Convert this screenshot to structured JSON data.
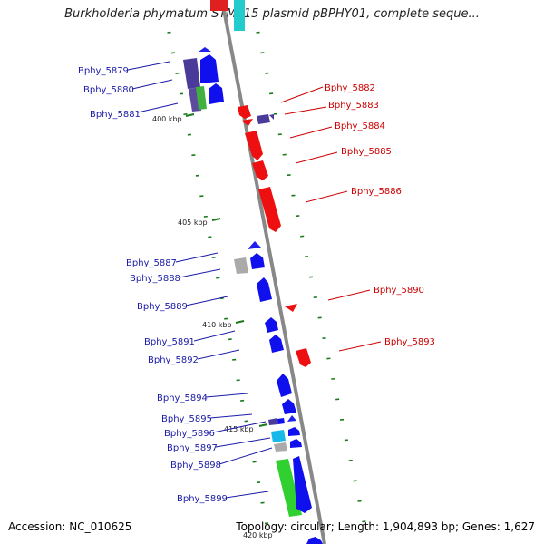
{
  "title": "Burkholderia phymatum STM815 plasmid pBPHY01, complete seque...",
  "accession_label": "Accession: NC_010625",
  "summary_label": "Topology: circular; Length: 1,904,893 bp; Genes: 1,627",
  "colors": {
    "forward_strand": "#0000ee",
    "reverse_strand": "#ee0000",
    "forward_label": "#1a1aa8",
    "reverse_label": "#cc0000",
    "backbone": "#888888",
    "ticks": "#1a7a1a"
  },
  "kbp_marks": [
    {
      "label": "400 kbp",
      "kbp": 400
    },
    {
      "label": "405 kbp",
      "kbp": 405
    },
    {
      "label": "410 kbp",
      "kbp": 410
    },
    {
      "label": "415 kbp",
      "kbp": 415
    },
    {
      "label": "420 kbp",
      "kbp": 420
    }
  ],
  "forward_gene_labels": [
    "Bphy_5879",
    "Bphy_5880",
    "Bphy_5881",
    "Bphy_5887",
    "Bphy_5888",
    "Bphy_5889",
    "Bphy_5891",
    "Bphy_5892",
    "Bphy_5894",
    "Bphy_5895",
    "Bphy_5896",
    "Bphy_5897",
    "Bphy_5898",
    "Bphy_5899"
  ],
  "reverse_gene_labels": [
    "Bphy_5882",
    "Bphy_5883",
    "Bphy_5884",
    "Bphy_5885",
    "Bphy_5886",
    "Bphy_5890",
    "Bphy_5893"
  ]
}
